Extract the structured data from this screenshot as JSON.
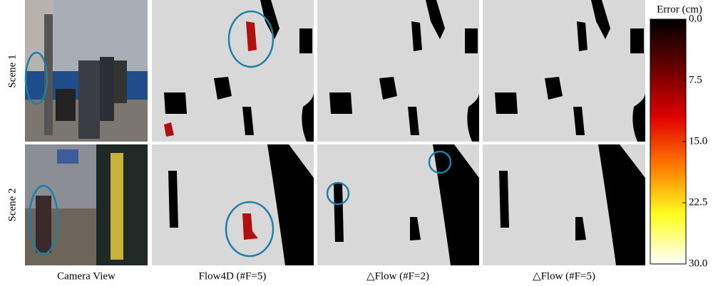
{
  "figure": {
    "row_labels": [
      "Scene 1",
      "Scene 2"
    ],
    "column_labels": [
      "Camera View",
      "Flow4D (#F=5)",
      "△Flow (#F=2)",
      "△Flow (#F=5)"
    ],
    "colorbar": {
      "label": "Error (cm)",
      "ticks": [
        {
          "value": 0,
          "label": "0.0"
        },
        {
          "value": 7.5,
          "label": "7.5"
        },
        {
          "value": 15,
          "label": "15.0"
        },
        {
          "value": 22.5,
          "label": "22.5"
        },
        {
          "value": 30,
          "label": "30.0"
        }
      ]
    }
  }
}
